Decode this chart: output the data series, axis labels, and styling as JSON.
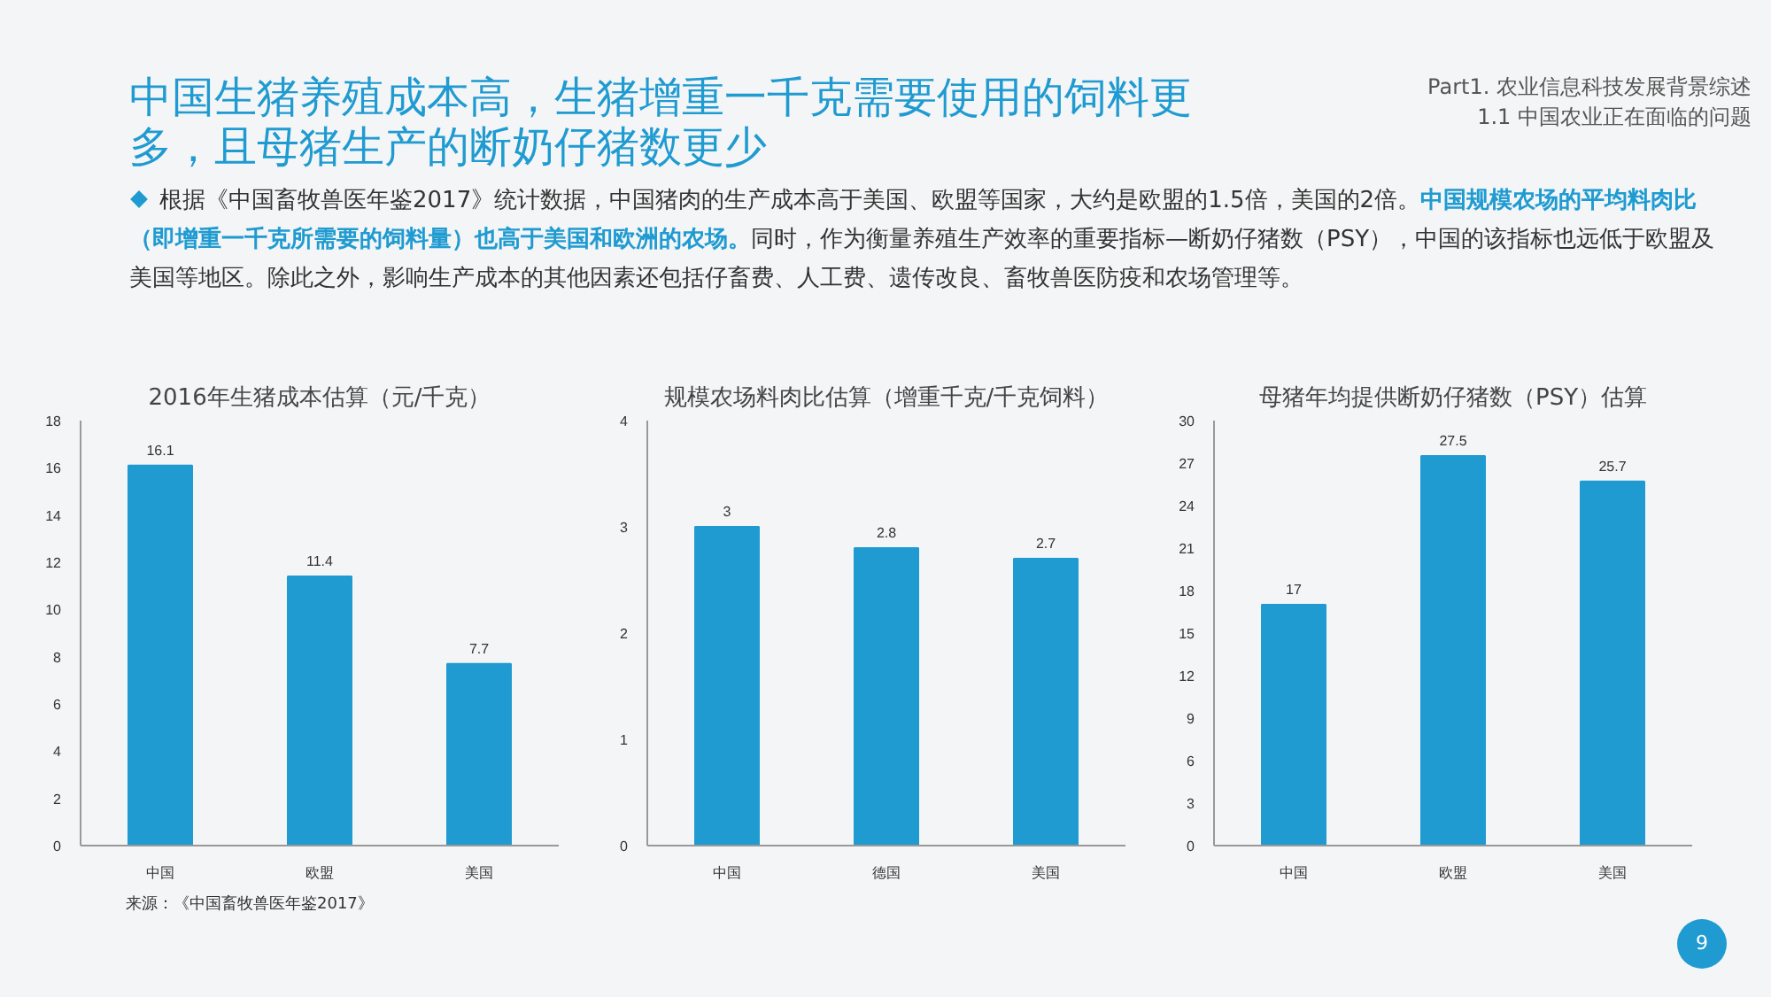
{
  "chart_data": [
    {
      "type": "bar",
      "title": "2016年生猪成本估算（元/千克）",
      "categories": [
        "中国",
        "欧盟",
        "美国"
      ],
      "values": [
        16.1,
        11.4,
        7.7
      ],
      "color": "#1f9bd1",
      "ylim": [
        0,
        18
      ],
      "yticks": [
        0,
        2,
        4,
        6,
        8,
        10,
        12,
        14,
        16,
        18
      ],
      "data_labels": true,
      "annotations": [
        "中国生猪养殖成本高，生猪增重一千克需要使用的饲料更多，且母猪生产的断奶仔猪数更少",
        "Part1. 农业信息科技发展背景综述",
        "1.1 中国农业正在面临的问题",
        "根据《中国畜牧兽医年鉴2017》统计数据，中国猪肉的生产成本高于美国、欧盟等国家，大约是欧盟的1.5倍，美国的2倍。",
        "中国规模农场的平均料肉比（即增重一千克所需要的饲料量）也高于美国和欧洲的农场。",
        "同时，作为衡量养殖生产效率的重要指标—断奶仔猪数（PSY），中国的该指标也远低于欧盟及美国等地区。除此之外，影响生产成本的其他因素还包括仔畜费、人工费、遗传改良、畜牧兽医防疫和农场管理等。",
        "来源：《中国畜牧兽医年鉴2017》",
        "9"
      ]
    },
    {
      "type": "bar",
      "title": "规模农场料肉比估算（增重千克/千克饲料）",
      "categories": [
        "中国",
        "德国",
        "美国"
      ],
      "values": [
        3,
        2.8,
        2.7
      ],
      "color": "#1f9bd1",
      "ylim": [
        0,
        4
      ],
      "yticks": [
        0,
        1,
        2,
        3,
        4
      ],
      "data_labels": true
    },
    {
      "type": "bar",
      "title": "母猪年均提供断奶仔猪数（PSY）估算",
      "categories": [
        "中国",
        "欧盟",
        "美国"
      ],
      "values": [
        17,
        27.5,
        25.7
      ],
      "color": "#1f9bd1",
      "ylim": [
        0,
        30
      ],
      "yticks": [
        0,
        3,
        6,
        9,
        12,
        15,
        18,
        21,
        24,
        27,
        30
      ],
      "data_labels": true
    }
  ]
}
